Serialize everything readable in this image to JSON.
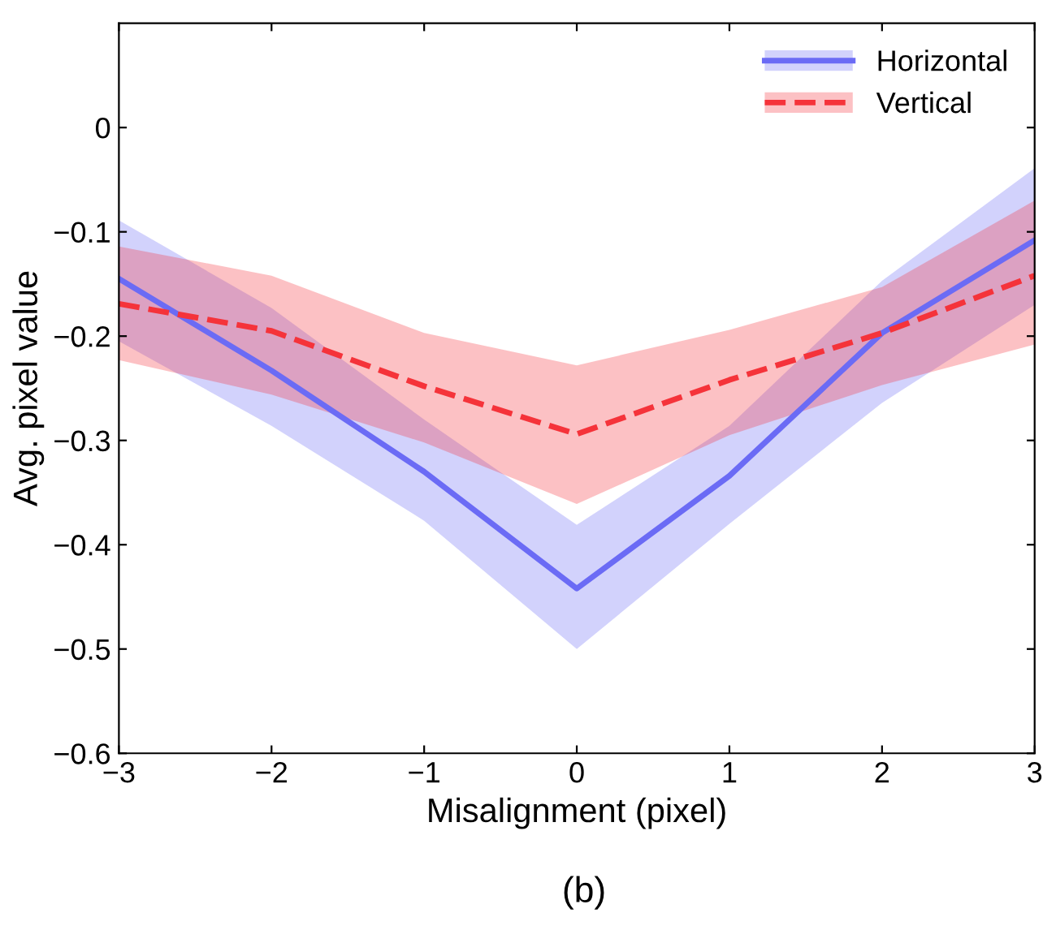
{
  "chart_data": {
    "type": "line",
    "xlabel": "Misalignment (pixel)",
    "ylabel": "Avg. pixel value",
    "x": [
      -3,
      -2,
      -1,
      0,
      1,
      2,
      3
    ],
    "series": [
      {
        "name": "Horizontal",
        "color": "#6b6bf5",
        "line_style": "solid",
        "values": [
          -0.145,
          -0.233,
          -0.33,
          -0.442,
          -0.334,
          -0.197,
          -0.108
        ],
        "lower": [
          -0.205,
          -0.286,
          -0.377,
          -0.5,
          -0.38,
          -0.264,
          -0.17
        ],
        "upper": [
          -0.089,
          -0.173,
          -0.28,
          -0.381,
          -0.286,
          -0.147,
          -0.039
        ]
      },
      {
        "name": "Vertical",
        "color": "#f5333a",
        "line_style": "dashed",
        "values": [
          -0.169,
          -0.195,
          -0.248,
          -0.294,
          -0.242,
          -0.197,
          -0.142
        ],
        "lower": [
          -0.223,
          -0.256,
          -0.302,
          -0.361,
          -0.295,
          -0.247,
          -0.208
        ],
        "upper": [
          -0.114,
          -0.142,
          -0.197,
          -0.228,
          -0.194,
          -0.153,
          -0.07
        ]
      }
    ],
    "xlim": [
      -3,
      3
    ],
    "xticks": [
      -3,
      -2,
      -1,
      0,
      1,
      2,
      3
    ],
    "ylim": [
      -0.6,
      0.1
    ],
    "yticks": [
      -0.6,
      -0.5,
      -0.4,
      -0.3,
      -0.2,
      -0.1,
      0
    ],
    "grid": false,
    "legend": "top right",
    "marker": "none",
    "annotations": [
      "(b)"
    ]
  }
}
